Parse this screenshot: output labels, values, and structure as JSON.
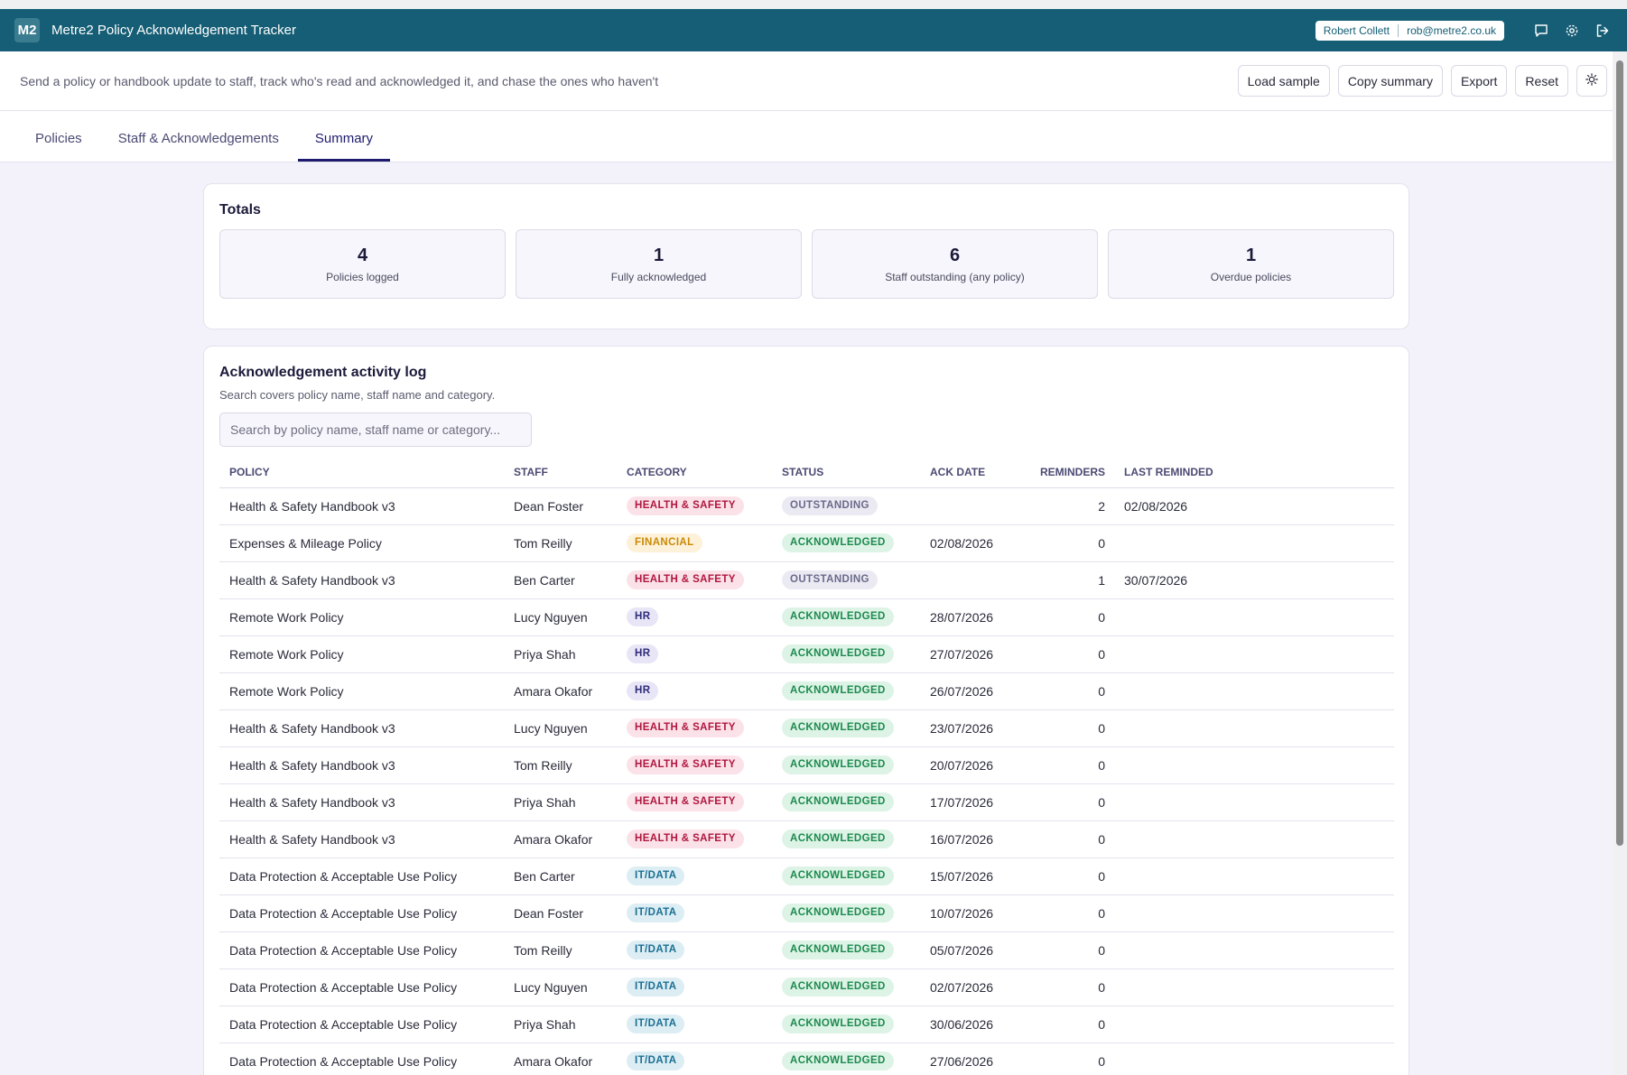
{
  "app": {
    "logo": "M2",
    "title": "Metre2 Policy Acknowledgement Tracker",
    "user_name": "Robert Collett",
    "user_email": "rob@metre2.co.uk",
    "header_icons": [
      "chat-icon",
      "gear-icon",
      "logout-icon"
    ]
  },
  "subbar": {
    "description": "Send a policy or handbook update to staff, track who's read and acknowledged it, and chase the ones who haven't",
    "load_sample": "Load sample",
    "copy_summary": "Copy summary",
    "export": "Export",
    "reset": "Reset",
    "theme_icon": "sun-icon"
  },
  "tabs": [
    {
      "label": "Policies",
      "active": false
    },
    {
      "label": "Staff & Acknowledgements",
      "active": false
    },
    {
      "label": "Summary",
      "active": true
    }
  ],
  "totals": {
    "title": "Totals",
    "stats": [
      {
        "value": "4",
        "label": "Policies logged"
      },
      {
        "value": "1",
        "label": "Fully acknowledged"
      },
      {
        "value": "6",
        "label": "Staff outstanding (any policy)"
      },
      {
        "value": "1",
        "label": "Overdue policies"
      }
    ]
  },
  "log": {
    "title": "Acknowledgement activity log",
    "hint": "Search covers policy name, staff name and category.",
    "search_placeholder": "Search by policy name, staff name or category...",
    "columns": [
      "POLICY",
      "STAFF",
      "CATEGORY",
      "STATUS",
      "ACK DATE",
      "REMINDERS",
      "LAST REMINDED"
    ],
    "rows": [
      {
        "policy": "Health & Safety Handbook v3",
        "staff": "Dean Foster",
        "category": "HEALTH & SAFETY",
        "cat": "hs",
        "status": "OUTSTANDING",
        "st": "out",
        "ack_date": "",
        "reminders": "2",
        "last_reminded": "02/08/2026"
      },
      {
        "policy": "Expenses & Mileage Policy",
        "staff": "Tom Reilly",
        "category": "FINANCIAL",
        "cat": "fin",
        "status": "ACKNOWLEDGED",
        "st": "ack",
        "ack_date": "02/08/2026",
        "reminders": "0",
        "last_reminded": ""
      },
      {
        "policy": "Health & Safety Handbook v3",
        "staff": "Ben Carter",
        "category": "HEALTH & SAFETY",
        "cat": "hs",
        "status": "OUTSTANDING",
        "st": "out",
        "ack_date": "",
        "reminders": "1",
        "last_reminded": "30/07/2026"
      },
      {
        "policy": "Remote Work Policy",
        "staff": "Lucy Nguyen",
        "category": "HR",
        "cat": "hr",
        "status": "ACKNOWLEDGED",
        "st": "ack",
        "ack_date": "28/07/2026",
        "reminders": "0",
        "last_reminded": ""
      },
      {
        "policy": "Remote Work Policy",
        "staff": "Priya Shah",
        "category": "HR",
        "cat": "hr",
        "status": "ACKNOWLEDGED",
        "st": "ack",
        "ack_date": "27/07/2026",
        "reminders": "0",
        "last_reminded": ""
      },
      {
        "policy": "Remote Work Policy",
        "staff": "Amara Okafor",
        "category": "HR",
        "cat": "hr",
        "status": "ACKNOWLEDGED",
        "st": "ack",
        "ack_date": "26/07/2026",
        "reminders": "0",
        "last_reminded": ""
      },
      {
        "policy": "Health & Safety Handbook v3",
        "staff": "Lucy Nguyen",
        "category": "HEALTH & SAFETY",
        "cat": "hs",
        "status": "ACKNOWLEDGED",
        "st": "ack",
        "ack_date": "23/07/2026",
        "reminders": "0",
        "last_reminded": ""
      },
      {
        "policy": "Health & Safety Handbook v3",
        "staff": "Tom Reilly",
        "category": "HEALTH & SAFETY",
        "cat": "hs",
        "status": "ACKNOWLEDGED",
        "st": "ack",
        "ack_date": "20/07/2026",
        "reminders": "0",
        "last_reminded": ""
      },
      {
        "policy": "Health & Safety Handbook v3",
        "staff": "Priya Shah",
        "category": "HEALTH & SAFETY",
        "cat": "hs",
        "status": "ACKNOWLEDGED",
        "st": "ack",
        "ack_date": "17/07/2026",
        "reminders": "0",
        "last_reminded": ""
      },
      {
        "policy": "Health & Safety Handbook v3",
        "staff": "Amara Okafor",
        "category": "HEALTH & SAFETY",
        "cat": "hs",
        "status": "ACKNOWLEDGED",
        "st": "ack",
        "ack_date": "16/07/2026",
        "reminders": "0",
        "last_reminded": ""
      },
      {
        "policy": "Data Protection & Acceptable Use Policy",
        "staff": "Ben Carter",
        "category": "IT/DATA",
        "cat": "it",
        "status": "ACKNOWLEDGED",
        "st": "ack",
        "ack_date": "15/07/2026",
        "reminders": "0",
        "last_reminded": ""
      },
      {
        "policy": "Data Protection & Acceptable Use Policy",
        "staff": "Dean Foster",
        "category": "IT/DATA",
        "cat": "it",
        "status": "ACKNOWLEDGED",
        "st": "ack",
        "ack_date": "10/07/2026",
        "reminders": "0",
        "last_reminded": ""
      },
      {
        "policy": "Data Protection & Acceptable Use Policy",
        "staff": "Tom Reilly",
        "category": "IT/DATA",
        "cat": "it",
        "status": "ACKNOWLEDGED",
        "st": "ack",
        "ack_date": "05/07/2026",
        "reminders": "0",
        "last_reminded": ""
      },
      {
        "policy": "Data Protection & Acceptable Use Policy",
        "staff": "Lucy Nguyen",
        "category": "IT/DATA",
        "cat": "it",
        "status": "ACKNOWLEDGED",
        "st": "ack",
        "ack_date": "02/07/2026",
        "reminders": "0",
        "last_reminded": ""
      },
      {
        "policy": "Data Protection & Acceptable Use Policy",
        "staff": "Priya Shah",
        "category": "IT/DATA",
        "cat": "it",
        "status": "ACKNOWLEDGED",
        "st": "ack",
        "ack_date": "30/06/2026",
        "reminders": "0",
        "last_reminded": ""
      },
      {
        "policy": "Data Protection & Acceptable Use Policy",
        "staff": "Amara Okafor",
        "category": "IT/DATA",
        "cat": "it",
        "status": "ACKNOWLEDGED",
        "st": "ack",
        "ack_date": "27/06/2026",
        "reminders": "0",
        "last_reminded": ""
      }
    ]
  },
  "colors": {
    "header_bg": "#155e75",
    "accent": "#1e1b6e",
    "health_safety": "#b0163f",
    "financial": "#c98a06",
    "hr": "#2d2a7a",
    "it_data": "#1a6f92",
    "acknowledged": "#1d8a4e",
    "outstanding": "#6a6a8a"
  }
}
